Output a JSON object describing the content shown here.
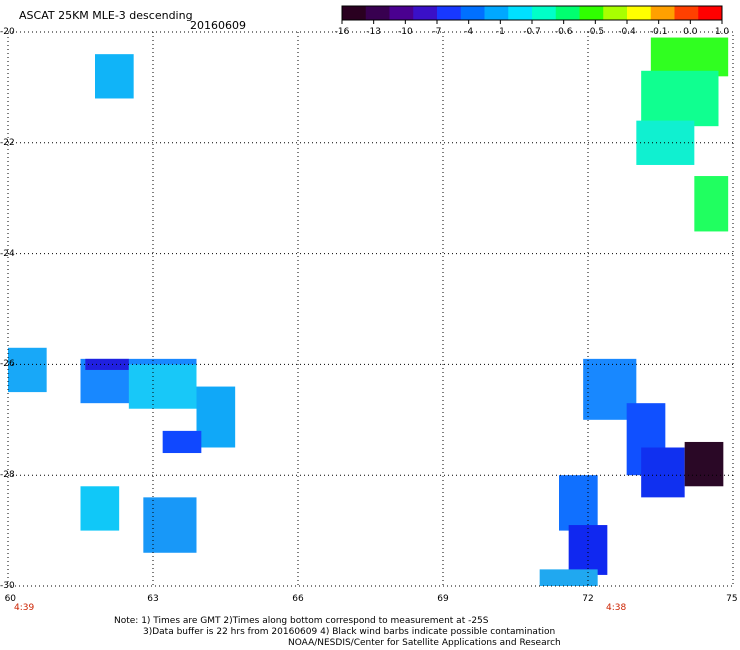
{
  "header": {
    "title": "ASCAT 25KM MLE-3 descending",
    "date": "20160609"
  },
  "colorbar": {
    "ticks": [
      "-16",
      "-13",
      "-10",
      "-7",
      "-4",
      "-1",
      "-0.7",
      "-0.6",
      "-0.5",
      "-0.4",
      "-0.1",
      "0.0",
      "1.0"
    ],
    "colors": [
      "#2a0020",
      "#380050",
      "#4a0090",
      "#3a10c8",
      "#1838ff",
      "#0070ff",
      "#00a8ff",
      "#00e0ff",
      "#00ffc8",
      "#00ff70",
      "#30ff00",
      "#a8ff00",
      "#ffff00",
      "#ffa000",
      "#ff4000",
      "#ff0000"
    ]
  },
  "axes": {
    "y_ticks": [
      "-20",
      "-22",
      "-24",
      "-26",
      "-28",
      "-30"
    ],
    "x_ticks": [
      "60",
      "63",
      "66",
      "69",
      "72",
      "75"
    ],
    "times": [
      "4:39",
      "4:38"
    ]
  },
  "notes": {
    "line1": "Note: 1) Times are GMT 2)Times along bottom correspond to measurement at -25S",
    "line2": "3)Data buffer is 22 hrs from 20160609 4) Black wind barbs indicate possible contamination",
    "line3": "NOAA/NESDIS/Center for Satellite Applications and Research"
  },
  "swaths": [
    {
      "name": "cell-A",
      "lon": [
        61.8,
        62.6
      ],
      "lat": [
        -20.4,
        -21.2
      ],
      "color": "#10b4f8"
    },
    {
      "name": "cell-B",
      "lon": [
        60.0,
        60.8
      ],
      "lat": [
        -25.7,
        -26.5
      ],
      "color": "#18a8f8"
    },
    {
      "name": "cell-C",
      "lon": [
        61.5,
        63.9
      ],
      "lat": [
        -25.9,
        -26.7
      ],
      "color": "#1888ff"
    },
    {
      "name": "cell-D",
      "lon": [
        61.6,
        62.5
      ],
      "lat": [
        -25.9,
        -26.1
      ],
      "color": "#2020e0"
    },
    {
      "name": "cell-E",
      "lon": [
        62.5,
        63.9
      ],
      "lat": [
        -26.0,
        -26.8
      ],
      "color": "#18c8f8"
    },
    {
      "name": "cell-F",
      "lon": [
        63.9,
        64.7
      ],
      "lat": [
        -26.4,
        -27.5
      ],
      "color": "#10a8f8"
    },
    {
      "name": "cell-G",
      "lon": [
        63.2,
        64.0
      ],
      "lat": [
        -27.2,
        -27.6
      ],
      "color": "#1048ff"
    },
    {
      "name": "cell-H",
      "lon": [
        61.5,
        62.3
      ],
      "lat": [
        -28.2,
        -29.0
      ],
      "color": "#10c8f8"
    },
    {
      "name": "cell-I",
      "lon": [
        62.8,
        63.9
      ],
      "lat": [
        -28.4,
        -29.4
      ],
      "color": "#1898f8"
    },
    {
      "name": "cell-J",
      "lon": [
        71.9,
        73.0
      ],
      "lat": [
        -25.9,
        -27.0
      ],
      "color": "#1888ff"
    },
    {
      "name": "cell-K",
      "lon": [
        72.8,
        73.6
      ],
      "lat": [
        -26.7,
        -28.0
      ],
      "color": "#1050ff"
    },
    {
      "name": "cell-L",
      "lon": [
        73.1,
        74.0
      ],
      "lat": [
        -27.5,
        -28.4
      ],
      "color": "#1030f0"
    },
    {
      "name": "cell-M",
      "lon": [
        74.0,
        74.8
      ],
      "lat": [
        -27.4,
        -28.2
      ],
      "color": "#2a0826"
    },
    {
      "name": "cell-N",
      "lon": [
        71.4,
        72.2
      ],
      "lat": [
        -28.0,
        -29.0
      ],
      "color": "#1070ff"
    },
    {
      "name": "cell-O",
      "lon": [
        71.6,
        72.4
      ],
      "lat": [
        -28.9,
        -29.8
      ],
      "color": "#1028f0"
    },
    {
      "name": "cell-P",
      "lon": [
        71.0,
        72.2
      ],
      "lat": [
        -29.7,
        -30.0
      ],
      "color": "#20a8f0"
    },
    {
      "name": "cell-Q",
      "lon": [
        73.3,
        74.9
      ],
      "lat": [
        -20.1,
        -20.8
      ],
      "color": "#30ff20"
    },
    {
      "name": "cell-R",
      "lon": [
        73.1,
        74.7
      ],
      "lat": [
        -20.7,
        -21.7
      ],
      "color": "#10ff90"
    },
    {
      "name": "cell-S",
      "lon": [
        73.0,
        74.2
      ],
      "lat": [
        -21.6,
        -22.4
      ],
      "color": "#10f0d0"
    },
    {
      "name": "cell-T",
      "lon": [
        74.2,
        74.9
      ],
      "lat": [
        -22.6,
        -23.6
      ],
      "color": "#20ff60"
    }
  ]
}
